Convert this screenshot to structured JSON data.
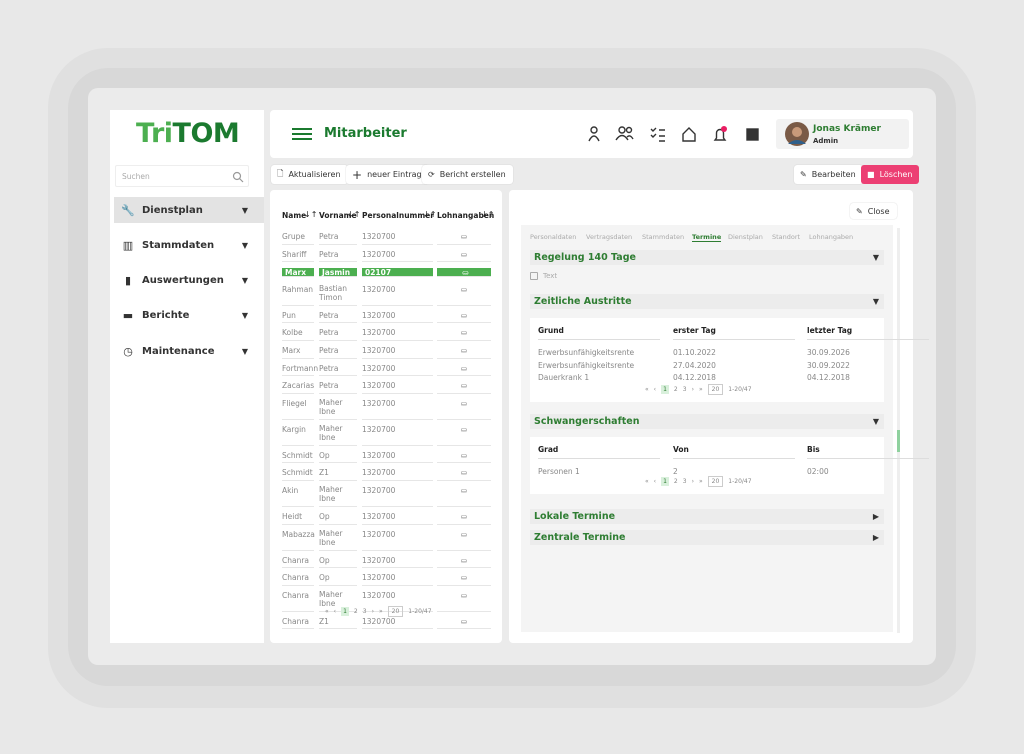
{
  "brand": {
    "part1": "Tri",
    "part2": "TOM"
  },
  "search": {
    "placeholder": "Suchen"
  },
  "nav": [
    "Dienstplan",
    "Stammdaten",
    "Auswertungen",
    "Berichte",
    "Maintenance"
  ],
  "header": {
    "title": "Mitarbeiter",
    "user_name": "Jonas Krämer",
    "user_role": "Admin"
  },
  "toolbar": {
    "left": [
      "Aktualisieren",
      "neuer Eintrag",
      "Bericht erstellen"
    ],
    "right": [
      "Bearbeiten",
      "Löschen"
    ]
  },
  "table": {
    "columns": [
      "Name",
      "Vorname",
      "Personalnummer",
      "Lohnangaben"
    ],
    "rows": [
      [
        "Grupe",
        "Petra",
        "1320700"
      ],
      [
        "Shariff",
        "Petra",
        "1320700"
      ],
      [
        "Marx",
        "Jasmin",
        "02107"
      ],
      [
        "Rahman",
        "Bastian Timon",
        "1320700"
      ],
      [
        "Pun",
        "Petra",
        "1320700"
      ],
      [
        "Kolbe",
        "Petra",
        "1320700"
      ],
      [
        "Marx",
        "Petra",
        "1320700"
      ],
      [
        "Fortmann",
        "Petra",
        "1320700"
      ],
      [
        "Zacarias",
        "Petra",
        "1320700"
      ],
      [
        "Fliegel",
        "Maher Ibne",
        "1320700"
      ],
      [
        "Kargin",
        "Maher Ibne",
        "1320700"
      ],
      [
        "Schmidt",
        "Op",
        "1320700"
      ],
      [
        "Schmidt",
        "Z1",
        "1320700"
      ],
      [
        "Akin",
        "Maher Ibne",
        "1320700"
      ],
      [
        "Heidt",
        "Op",
        "1320700"
      ],
      [
        "Mabazza",
        "Maher Ibne",
        "1320700"
      ],
      [
        "Chanra",
        "Op",
        "1320700"
      ],
      [
        "Chanra",
        "Op",
        "1320700"
      ],
      [
        "Chanra",
        "Maher Ibne",
        "1320700"
      ],
      [
        "Chanra",
        "Z1",
        "1320700"
      ]
    ],
    "pagination": {
      "pages": [
        "1",
        "2",
        "3"
      ],
      "page_size": "20",
      "range": "1-20/47"
    }
  },
  "detail": {
    "close": "Close",
    "tabs": [
      "Personaldaten",
      "Vertragsdaten",
      "Stammdaten",
      "Termine",
      "Dienstplan",
      "Standort",
      "Lohnangaben"
    ],
    "regelung": {
      "title": "Regelung 140 Tage",
      "checkbox": "Text"
    },
    "austritte": {
      "title": "Zeitliche Austritte",
      "columns": [
        "Grund",
        "erster Tag",
        "letzter Tag"
      ],
      "rows": [
        [
          "Erwerbsunfähigkeitsrente",
          "01.10.2022",
          "30.09.2026"
        ],
        [
          "Erwerbsunfähigkeitsrente",
          "27.04.2020",
          "30.09.2022"
        ],
        [
          "Dauerkrank 1",
          "04.12.2018",
          "04.12.2018"
        ]
      ],
      "pagination": {
        "pages": [
          "1",
          "2",
          "3"
        ],
        "page_size": "20",
        "range": "1-20/47"
      }
    },
    "schwanger": {
      "title": "Schwangerschaften",
      "columns": [
        "Grad",
        "Von",
        "Bis"
      ],
      "rows": [
        [
          "Personen 1",
          "2",
          "02:00"
        ]
      ],
      "pagination": {
        "pages": [
          "1",
          "2",
          "3"
        ],
        "page_size": "20",
        "range": "1-20/47"
      }
    },
    "lokale": {
      "title": "Lokale Termine"
    },
    "zentrale": {
      "title": "Zentrale Termine"
    }
  }
}
